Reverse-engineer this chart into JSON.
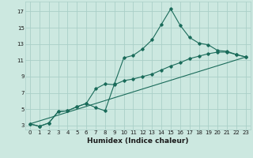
{
  "xlabel": "Humidex (Indice chaleur)",
  "xlim": [
    -0.5,
    23.5
  ],
  "ylim": [
    2.5,
    18.2
  ],
  "yticks": [
    3,
    5,
    7,
    9,
    11,
    13,
    15,
    17
  ],
  "xticks": [
    0,
    1,
    2,
    3,
    4,
    5,
    6,
    7,
    8,
    9,
    10,
    11,
    12,
    13,
    14,
    15,
    16,
    17,
    18,
    19,
    20,
    21,
    22,
    23
  ],
  "bg_color": "#cce8e0",
  "grid_color": "#aacfc8",
  "line_color": "#1a6b5a",
  "line1_x": [
    0,
    1,
    2,
    3,
    4,
    5,
    6,
    7,
    8,
    9,
    10,
    11,
    12,
    13,
    14,
    15,
    16,
    17,
    18,
    19,
    20,
    21,
    22,
    23
  ],
  "line1_y": [
    3.2,
    2.9,
    3.3,
    4.7,
    4.8,
    5.3,
    5.7,
    5.2,
    4.8,
    8.1,
    11.3,
    11.6,
    12.4,
    13.5,
    15.4,
    17.3,
    15.3,
    13.8,
    13.1,
    12.9,
    12.2,
    12.1,
    11.7,
    11.4
  ],
  "line2_x": [
    0,
    1,
    2,
    3,
    4,
    5,
    6,
    7,
    8,
    9,
    10,
    11,
    12,
    13,
    14,
    15,
    16,
    17,
    18,
    19,
    20,
    21,
    22,
    23
  ],
  "line2_y": [
    3.2,
    2.9,
    3.3,
    4.7,
    4.8,
    5.3,
    5.7,
    7.5,
    8.1,
    8.0,
    8.5,
    8.7,
    9.0,
    9.3,
    9.8,
    10.3,
    10.7,
    11.2,
    11.5,
    11.8,
    12.0,
    12.0,
    11.7,
    11.4
  ],
  "line3_x": [
    0,
    23
  ],
  "line3_y": [
    3.2,
    11.4
  ],
  "tick_fontsize": 5.0,
  "xlabel_fontsize": 6.5
}
